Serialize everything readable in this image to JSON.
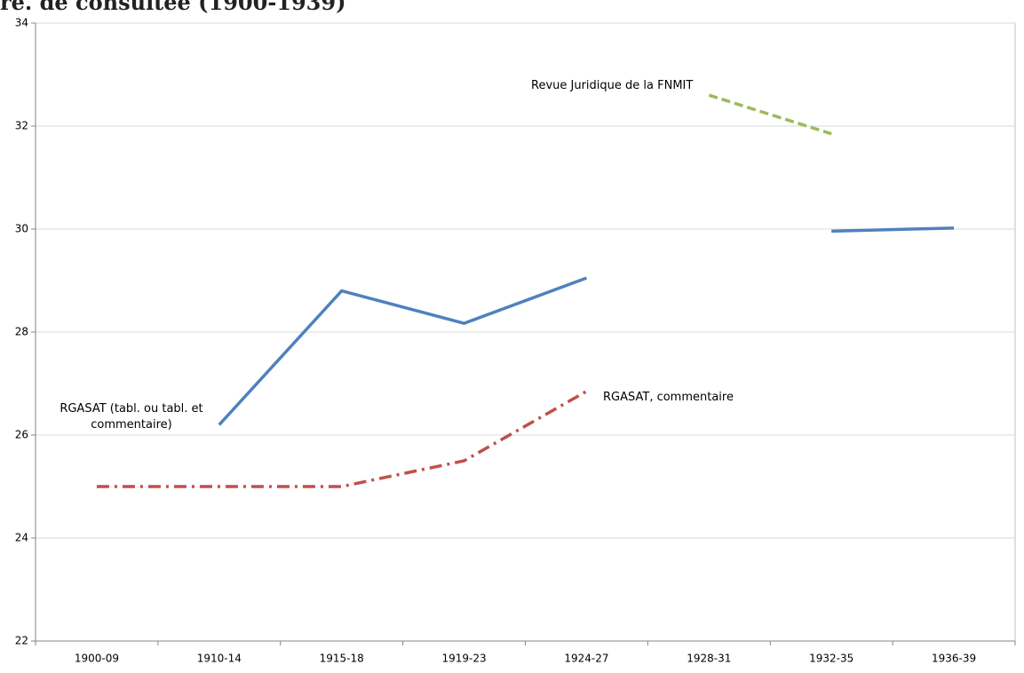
{
  "chart_data": {
    "type": "line",
    "title": "re. de consultée (1900-1939)",
    "categories": [
      "1900-09",
      "1910-14",
      "1915-18",
      "1919-23",
      "1924-27",
      "1928-31",
      "1932-35",
      "1936-39"
    ],
    "series": [
      {
        "name": "RGASAT (tabl. ou tabl. et commentaire)",
        "color": "#4f81bd",
        "dash": "solid",
        "values": [
          null,
          26.2,
          28.8,
          28.17,
          29.05,
          null,
          29.96,
          30.02
        ]
      },
      {
        "name": "RGASAT, commentaire",
        "color": "#c0504d",
        "dash": "dashdot",
        "values": [
          25,
          25,
          25,
          25.5,
          26.85,
          null,
          null,
          null
        ]
      },
      {
        "name": "Revue Juridique de la FNMIT",
        "color": "#9bbb59",
        "dash": "dashed",
        "values": [
          null,
          null,
          null,
          null,
          null,
          32.6,
          31.85,
          null
        ]
      }
    ],
    "ylim": [
      22,
      34
    ],
    "yticks": [
      22,
      24,
      26,
      28,
      30,
      32,
      34
    ],
    "grid": true
  }
}
